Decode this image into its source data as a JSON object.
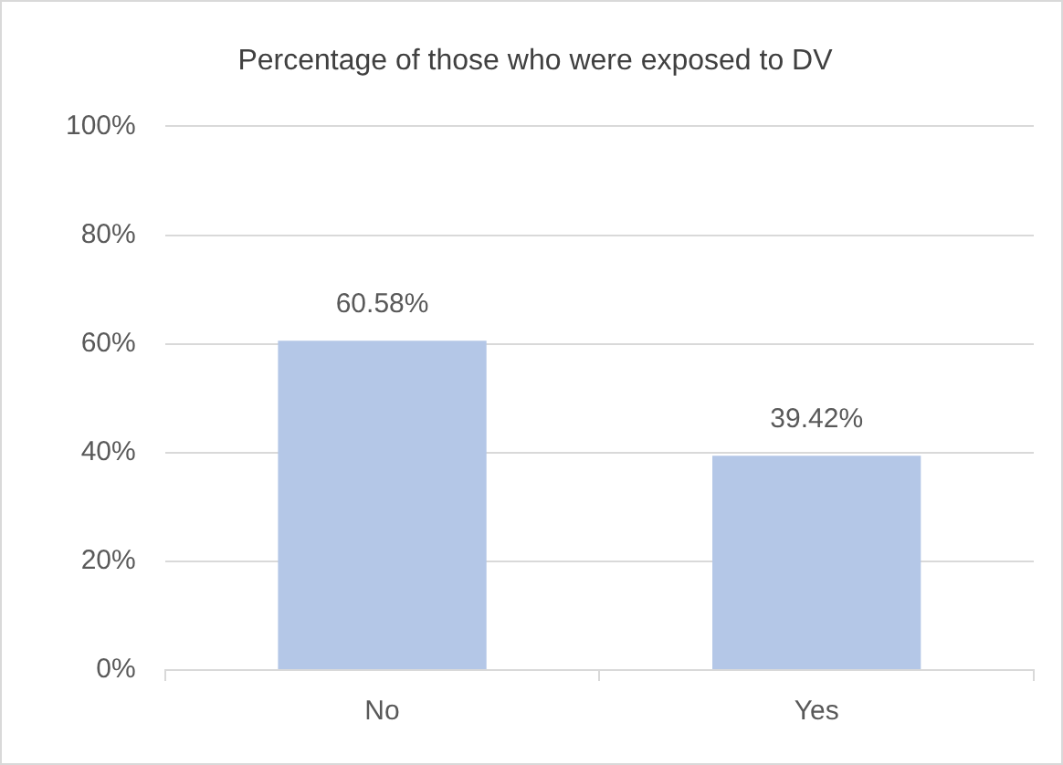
{
  "chart_data": {
    "type": "bar",
    "title": "Percentage of those who were exposed to DV",
    "categories": [
      "No",
      "Yes"
    ],
    "values": [
      60.58,
      39.42
    ],
    "value_labels": [
      "60.58%",
      "39.42%"
    ],
    "color": "#b4c7e7",
    "ylim": [
      0,
      100
    ],
    "yticks": [
      {
        "value": 0,
        "label": "0%"
      },
      {
        "value": 20,
        "label": "20%"
      },
      {
        "value": 40,
        "label": "40%"
      },
      {
        "value": 60,
        "label": "60%"
      },
      {
        "value": 80,
        "label": "80%"
      },
      {
        "value": 100,
        "label": "100%"
      }
    ],
    "grid": "y"
  }
}
